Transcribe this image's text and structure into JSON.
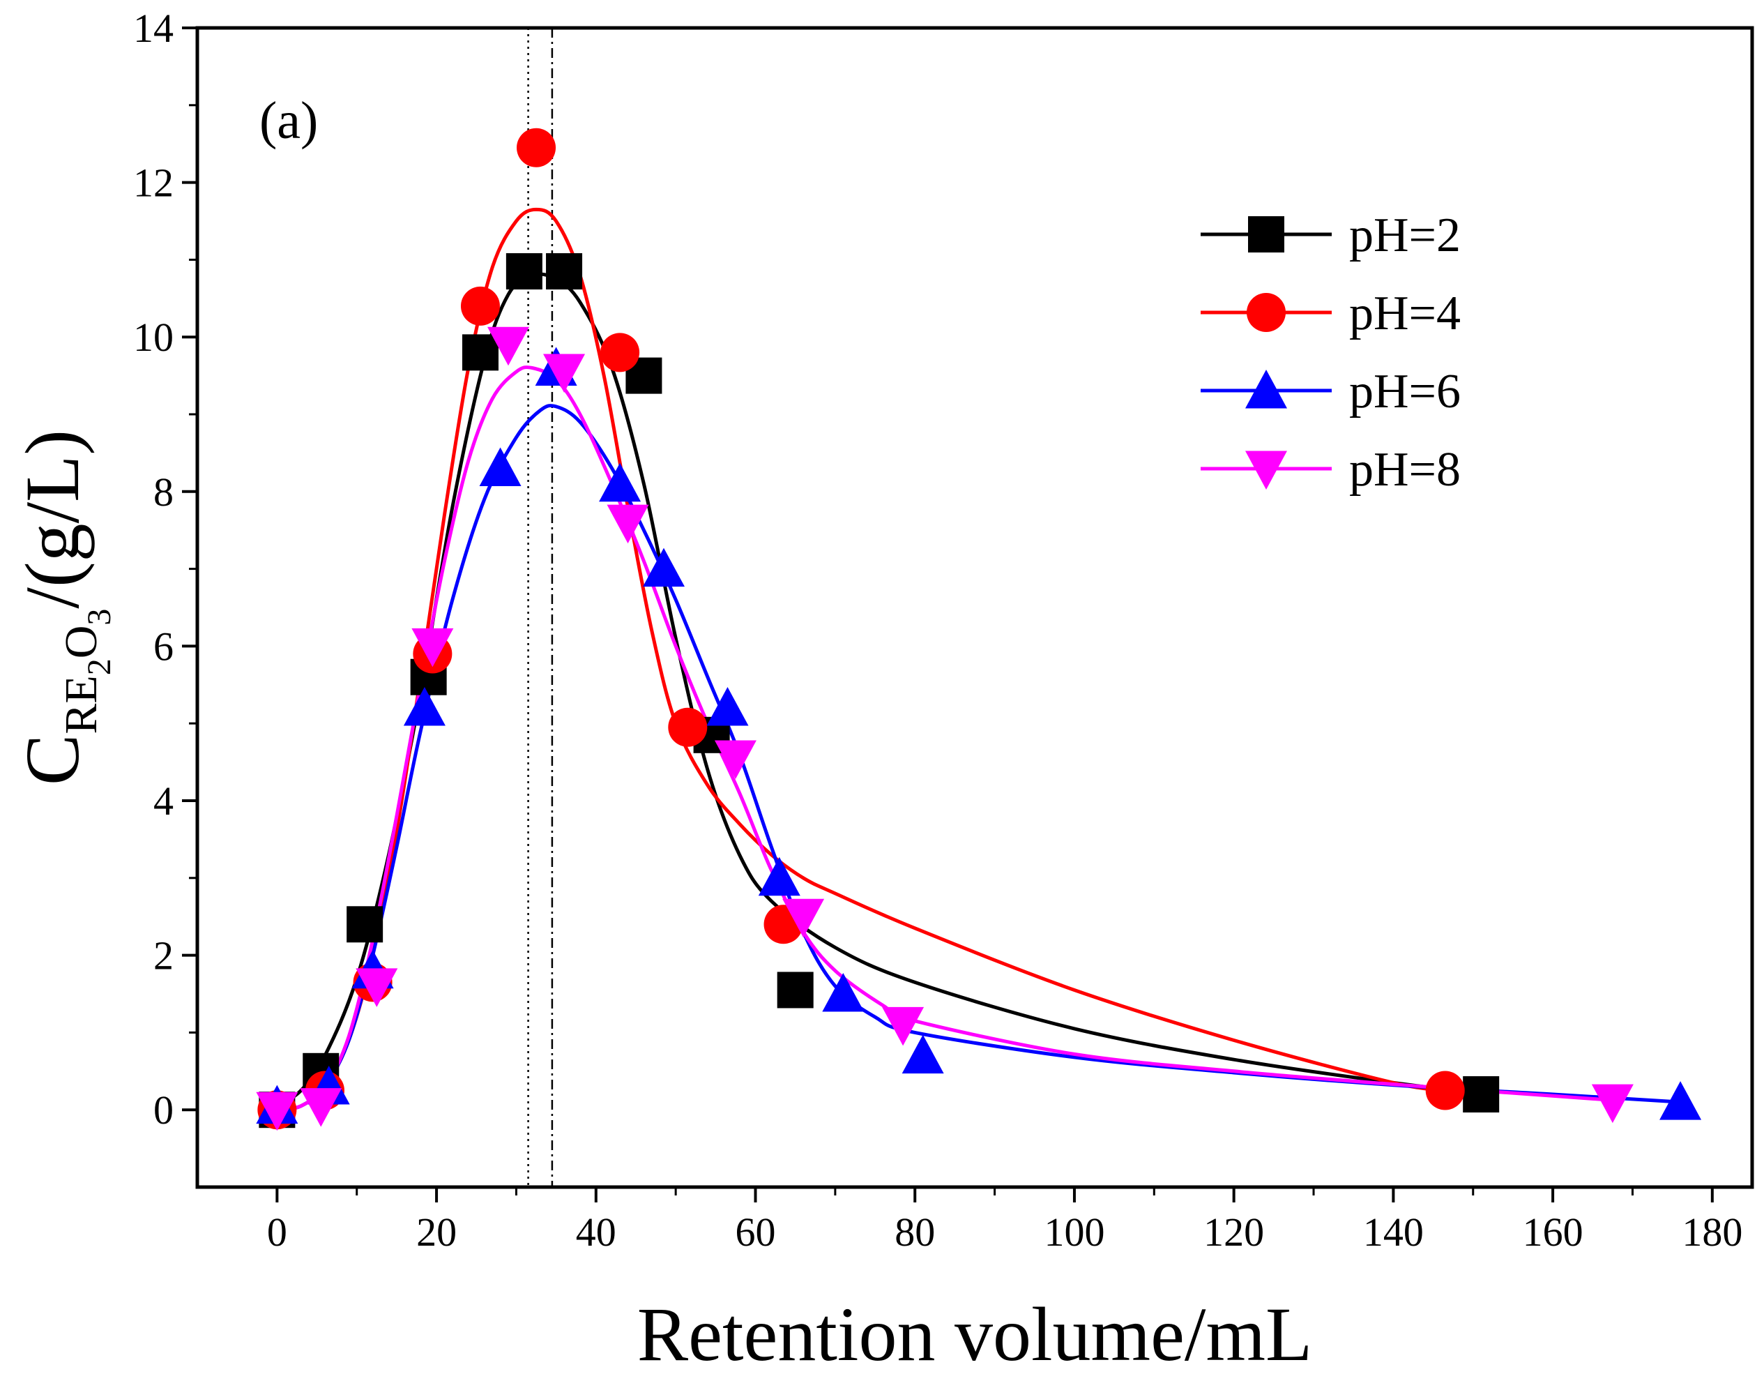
{
  "chart_data": {
    "type": "scatter",
    "panel_label": "(a)",
    "xlabel": "Retention volume/mL",
    "ylabel": {
      "main": "C",
      "sub1": "RE",
      "sub2": "2",
      "sub3": "O",
      "sub4": "3",
      "unit": "/(g/L)"
    },
    "xlim": [
      -10,
      185
    ],
    "ylim": [
      -1,
      14
    ],
    "xticks": [
      0,
      20,
      40,
      60,
      80,
      100,
      120,
      140,
      160,
      180
    ],
    "yticks": [
      0,
      2,
      4,
      6,
      8,
      10,
      12,
      14
    ],
    "xtick_labels": [
      "0",
      "20",
      "40",
      "60",
      "80",
      "100",
      "120",
      "140",
      "160",
      "180"
    ],
    "ytick_labels": [
      "0",
      "2",
      "4",
      "6",
      "8",
      "10",
      "12",
      "14"
    ],
    "vlines": [
      31.5,
      34.5
    ],
    "legend_position": "top-right",
    "series": [
      {
        "name": "pH=2",
        "color": "#000000",
        "marker": "square",
        "points": [
          [
            0,
            0
          ],
          [
            5.5,
            0.5
          ],
          [
            11,
            2.4
          ],
          [
            19,
            5.6
          ],
          [
            25.5,
            9.8
          ],
          [
            31,
            10.85
          ],
          [
            36,
            10.85
          ],
          [
            46,
            9.5
          ],
          [
            54.5,
            4.85
          ],
          [
            65,
            1.55
          ],
          [
            151,
            0.2
          ]
        ],
        "fit": [
          [
            0,
            0.05
          ],
          [
            3,
            0.25
          ],
          [
            6,
            0.7
          ],
          [
            10,
            1.7
          ],
          [
            14,
            3.3
          ],
          [
            18,
            5.4
          ],
          [
            22,
            7.8
          ],
          [
            26,
            9.7
          ],
          [
            29,
            10.55
          ],
          [
            32,
            10.8
          ],
          [
            35,
            10.75
          ],
          [
            38,
            10.45
          ],
          [
            42,
            9.6
          ],
          [
            46,
            8.1
          ],
          [
            50,
            6.1
          ],
          [
            54,
            4.4
          ],
          [
            58,
            3.3
          ],
          [
            62,
            2.7
          ],
          [
            70,
            2.1
          ],
          [
            80,
            1.65
          ],
          [
            100,
            1.05
          ],
          [
            120,
            0.65
          ],
          [
            140,
            0.35
          ],
          [
            152,
            0.2
          ]
        ]
      },
      {
        "name": "pH=4",
        "color": "#ff0000",
        "marker": "circle",
        "points": [
          [
            0,
            0
          ],
          [
            6,
            0.25
          ],
          [
            12,
            1.65
          ],
          [
            19.5,
            5.9
          ],
          [
            25.5,
            10.4
          ],
          [
            32.5,
            12.45
          ],
          [
            43,
            9.8
          ],
          [
            51.5,
            4.95
          ],
          [
            63.5,
            2.4
          ],
          [
            146.5,
            0.25
          ]
        ],
        "fit": [
          [
            0,
            0.0
          ],
          [
            3,
            0.05
          ],
          [
            6,
            0.3
          ],
          [
            9,
            0.9
          ],
          [
            12,
            2.0
          ],
          [
            15,
            3.6
          ],
          [
            18,
            5.6
          ],
          [
            21,
            7.7
          ],
          [
            24,
            9.6
          ],
          [
            27,
            10.9
          ],
          [
            30,
            11.5
          ],
          [
            32.5,
            11.65
          ],
          [
            35,
            11.5
          ],
          [
            38,
            10.8
          ],
          [
            41,
            9.5
          ],
          [
            44,
            7.8
          ],
          [
            47,
            6.2
          ],
          [
            50,
            5.0
          ],
          [
            54,
            4.2
          ],
          [
            58,
            3.7
          ],
          [
            62,
            3.3
          ],
          [
            66,
            3.0
          ],
          [
            70,
            2.8
          ],
          [
            80,
            2.35
          ],
          [
            100,
            1.55
          ],
          [
            120,
            0.9
          ],
          [
            140,
            0.35
          ],
          [
            147,
            0.25
          ]
        ]
      },
      {
        "name": "pH=6",
        "color": "#0000ff",
        "marker": "triangle-up",
        "points": [
          [
            0,
            0.05
          ],
          [
            6.5,
            0.3
          ],
          [
            12,
            1.8
          ],
          [
            18.5,
            5.2
          ],
          [
            28,
            8.3
          ],
          [
            35,
            9.6
          ],
          [
            43,
            8.1
          ],
          [
            48.5,
            7.0
          ],
          [
            56.5,
            5.2
          ],
          [
            63,
            3.0
          ],
          [
            71,
            1.5
          ],
          [
            81,
            0.7
          ],
          [
            176,
            0.1
          ]
        ],
        "fit": [
          [
            0,
            0.0
          ],
          [
            3,
            0.05
          ],
          [
            6,
            0.3
          ],
          [
            9,
            0.9
          ],
          [
            12,
            2.0
          ],
          [
            15,
            3.4
          ],
          [
            18,
            4.9
          ],
          [
            22,
            6.6
          ],
          [
            26,
            7.9
          ],
          [
            30,
            8.7
          ],
          [
            33,
            9.05
          ],
          [
            35,
            9.1
          ],
          [
            38,
            8.9
          ],
          [
            42,
            8.3
          ],
          [
            46,
            7.5
          ],
          [
            50,
            6.6
          ],
          [
            54,
            5.6
          ],
          [
            58,
            4.6
          ],
          [
            62,
            3.4
          ],
          [
            66,
            2.3
          ],
          [
            70,
            1.6
          ],
          [
            75,
            1.2
          ],
          [
            80,
            1.0
          ],
          [
            100,
            0.68
          ],
          [
            120,
            0.48
          ],
          [
            140,
            0.32
          ],
          [
            160,
            0.2
          ],
          [
            176,
            0.1
          ]
        ]
      },
      {
        "name": "pH=8",
        "color": "#ff00ff",
        "marker": "triangle-down",
        "points": [
          [
            0,
            0
          ],
          [
            5.5,
            0.05
          ],
          [
            12.5,
            1.6
          ],
          [
            19.5,
            6.0
          ],
          [
            29,
            9.9
          ],
          [
            36,
            9.55
          ],
          [
            44,
            7.6
          ],
          [
            57.5,
            4.55
          ],
          [
            66,
            2.5
          ],
          [
            78.5,
            1.1
          ],
          [
            167.5,
            0.1
          ]
        ],
        "fit": [
          [
            0,
            0.0
          ],
          [
            3,
            0.05
          ],
          [
            6,
            0.3
          ],
          [
            9,
            0.95
          ],
          [
            12,
            2.2
          ],
          [
            15,
            3.8
          ],
          [
            18,
            5.5
          ],
          [
            21,
            7.1
          ],
          [
            24,
            8.4
          ],
          [
            27,
            9.2
          ],
          [
            30,
            9.55
          ],
          [
            32,
            9.6
          ],
          [
            35,
            9.45
          ],
          [
            38,
            9.0
          ],
          [
            42,
            8.1
          ],
          [
            46,
            7.1
          ],
          [
            50,
            6.0
          ],
          [
            54,
            5.0
          ],
          [
            58,
            4.1
          ],
          [
            62,
            3.1
          ],
          [
            66,
            2.3
          ],
          [
            70,
            1.8
          ],
          [
            76,
            1.35
          ],
          [
            80,
            1.15
          ],
          [
            100,
            0.72
          ],
          [
            120,
            0.5
          ],
          [
            140,
            0.33
          ],
          [
            160,
            0.18
          ],
          [
            168,
            0.12
          ]
        ]
      }
    ]
  }
}
